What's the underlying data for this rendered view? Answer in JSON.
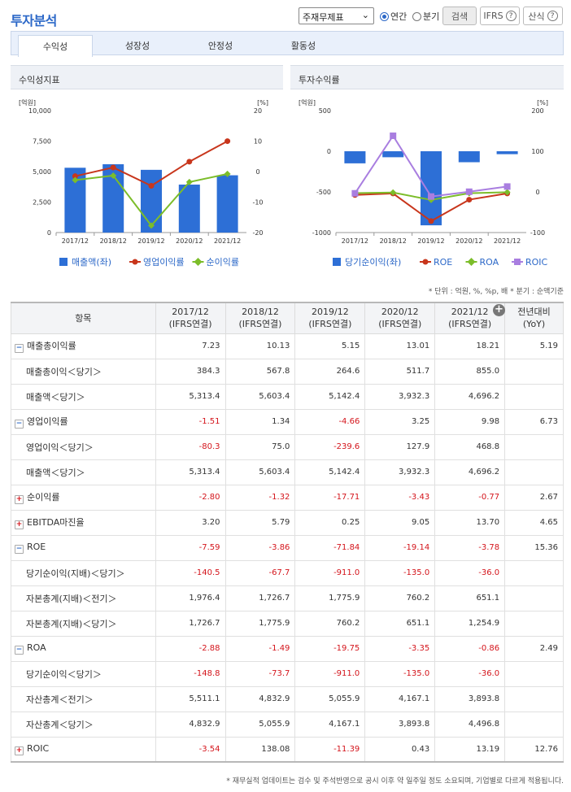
{
  "title": "투자분석",
  "controls": {
    "select": "주재무제표",
    "annual": "연간",
    "quarter": "분기",
    "search": "검색",
    "ifrs": "IFRS",
    "formula": "산식"
  },
  "tabs": [
    "수익성",
    "성장성",
    "안정성",
    "활동성"
  ],
  "panel_left": "수익성지표",
  "panel_right": "투자수익률",
  "legend_left": [
    "매출액(좌)",
    "영업이익률",
    "순이익률"
  ],
  "legend_right": [
    "당기순이익(좌)",
    "ROE",
    "ROA",
    "ROIC"
  ],
  "unit_note": "* 단위 : 억원, %, %p, 배    * 분기 : 순액기준",
  "footer": "* 재무실적 업데이트는 검수 및 주석반영으로 공시 이후 약 일주일 정도 소요되며, 기업별로 다르게 적용됩니다.",
  "colors": {
    "blue": "#2d6fd6",
    "red": "#c8361c",
    "green": "#7cbd2a",
    "purple": "#a97ee0"
  },
  "chart_data": [
    {
      "type": "bar",
      "title": "수익성지표",
      "categories": [
        "2017/12",
        "2018/12",
        "2019/12",
        "2020/12",
        "2021/12"
      ],
      "left_unit": "[억원]",
      "right_unit": "[%]",
      "left_ticks": [
        "10,000",
        "7,500",
        "5,000",
        "2,500",
        "0"
      ],
      "right_ticks": [
        "20",
        "10",
        "0",
        "-10",
        "-20"
      ],
      "ylim_left": [
        0,
        10000
      ],
      "ylim_right": [
        -20,
        20
      ],
      "series": [
        {
          "name": "매출액(좌)",
          "axis": "left",
          "values": [
            5313.4,
            5603.4,
            5142.4,
            3932.3,
            4696.2
          ]
        },
        {
          "name": "영업이익률",
          "axis": "right",
          "values": [
            -1.51,
            1.34,
            -4.66,
            3.25,
            9.98
          ]
        },
        {
          "name": "순이익률",
          "axis": "right",
          "values": [
            -2.8,
            -1.32,
            -17.71,
            -3.43,
            -0.77
          ]
        }
      ]
    },
    {
      "type": "bar",
      "title": "투자수익률",
      "categories": [
        "2017/12",
        "2018/12",
        "2019/12",
        "2020/12",
        "2021/12"
      ],
      "left_unit": "[억원]",
      "right_unit": "[%]",
      "left_ticks": [
        "500",
        "0",
        "-500",
        "-1000"
      ],
      "right_ticks": [
        "200",
        "100",
        "0",
        "-100"
      ],
      "ylim_left": [
        -1000,
        500
      ],
      "ylim_right": [
        -100,
        200
      ],
      "series": [
        {
          "name": "당기순이익(좌)",
          "axis": "left",
          "values": [
            -148.8,
            -73.7,
            -911.0,
            -135.0,
            -36.0
          ]
        },
        {
          "name": "ROE",
          "axis": "right",
          "values": [
            -7.59,
            -3.86,
            -71.84,
            -19.14,
            -3.78
          ]
        },
        {
          "name": "ROA",
          "axis": "right",
          "values": [
            -2.88,
            -1.49,
            -19.75,
            -3.35,
            -0.86
          ]
        },
        {
          "name": "ROIC",
          "axis": "right",
          "values": [
            -3.54,
            138.08,
            -11.39,
            0.43,
            13.19
          ]
        }
      ]
    }
  ],
  "table": {
    "header": [
      "항목",
      "2017/12\n(IFRS연결)",
      "2018/12\n(IFRS연결)",
      "2019/12\n(IFRS연결)",
      "2020/12\n(IFRS연결)",
      "2021/12\n(IFRS연결)",
      "전년대비\n(YoY)"
    ],
    "rows": [
      {
        "label": "매출총이익률",
        "icon": "minus",
        "sub": false,
        "vals": [
          "7.23",
          "10.13",
          "5.15",
          "13.01",
          "18.21",
          "5.19"
        ]
      },
      {
        "label": "매출총이익＜당기＞",
        "sub": true,
        "vals": [
          "384.3",
          "567.8",
          "264.6",
          "511.7",
          "855.0",
          ""
        ]
      },
      {
        "label": "매출액＜당기＞",
        "sub": true,
        "vals": [
          "5,313.4",
          "5,603.4",
          "5,142.4",
          "3,932.3",
          "4,696.2",
          ""
        ]
      },
      {
        "label": "영업이익률",
        "icon": "minus",
        "sub": false,
        "vals": [
          "-1.51",
          "1.34",
          "-4.66",
          "3.25",
          "9.98",
          "6.73"
        ]
      },
      {
        "label": "영업이익＜당기＞",
        "sub": true,
        "vals": [
          "-80.3",
          "75.0",
          "-239.6",
          "127.9",
          "468.8",
          ""
        ]
      },
      {
        "label": "매출액＜당기＞",
        "sub": true,
        "vals": [
          "5,313.4",
          "5,603.4",
          "5,142.4",
          "3,932.3",
          "4,696.2",
          ""
        ]
      },
      {
        "label": "순이익률",
        "icon": "plus",
        "sub": false,
        "vals": [
          "-2.80",
          "-1.32",
          "-17.71",
          "-3.43",
          "-0.77",
          "2.67"
        ]
      },
      {
        "label": "EBITDA마진율",
        "icon": "plus",
        "sub": false,
        "vals": [
          "3.20",
          "5.79",
          "0.25",
          "9.05",
          "13.70",
          "4.65"
        ]
      },
      {
        "label": "ROE",
        "icon": "minus",
        "sub": false,
        "vals": [
          "-7.59",
          "-3.86",
          "-71.84",
          "-19.14",
          "-3.78",
          "15.36"
        ]
      },
      {
        "label": "당기순이익(지배)＜당기＞",
        "sub": true,
        "vals": [
          "-140.5",
          "-67.7",
          "-911.0",
          "-135.0",
          "-36.0",
          ""
        ]
      },
      {
        "label": "자본총계(지배)＜전기＞",
        "sub": true,
        "vals": [
          "1,976.4",
          "1,726.7",
          "1,775.9",
          "760.2",
          "651.1",
          ""
        ]
      },
      {
        "label": "자본총계(지배)＜당기＞",
        "sub": true,
        "vals": [
          "1,726.7",
          "1,775.9",
          "760.2",
          "651.1",
          "1,254.9",
          ""
        ]
      },
      {
        "label": "ROA",
        "icon": "minus",
        "sub": false,
        "vals": [
          "-2.88",
          "-1.49",
          "-19.75",
          "-3.35",
          "-0.86",
          "2.49"
        ]
      },
      {
        "label": "당기순이익＜당기＞",
        "sub": true,
        "vals": [
          "-148.8",
          "-73.7",
          "-911.0",
          "-135.0",
          "-36.0",
          ""
        ]
      },
      {
        "label": "자산총계＜전기＞",
        "sub": true,
        "vals": [
          "5,511.1",
          "4,832.9",
          "5,055.9",
          "4,167.1",
          "3,893.8",
          ""
        ]
      },
      {
        "label": "자산총계＜당기＞",
        "sub": true,
        "vals": [
          "4,832.9",
          "5,055.9",
          "4,167.1",
          "3,893.8",
          "4,496.8",
          ""
        ]
      },
      {
        "label": "ROIC",
        "icon": "plus",
        "sub": false,
        "vals": [
          "-3.54",
          "138.08",
          "-11.39",
          "0.43",
          "13.19",
          "12.76"
        ]
      }
    ]
  }
}
